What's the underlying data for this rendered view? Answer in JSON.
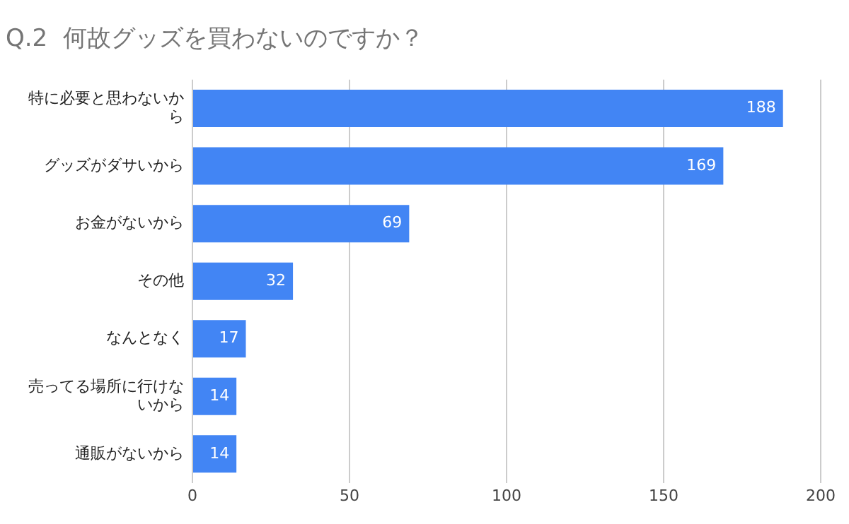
{
  "chart_data": {
    "type": "bar",
    "title": "Q.2  何故グッズを買わないのですか？",
    "orientation": "horizontal",
    "categories": [
      "特に必要と思わないから",
      "グッズがダサいから",
      "お金がないから",
      "その他",
      "なんとなく",
      "売ってる場所に行けないから",
      "通販がないから"
    ],
    "values": [
      188,
      169,
      69,
      32,
      17,
      14,
      14
    ],
    "color": "#4285f4",
    "xlim": [
      0,
      200
    ],
    "xticks": [
      0,
      50,
      100,
      150,
      200
    ],
    "grid": "x",
    "data_labels": true,
    "legend": false
  }
}
